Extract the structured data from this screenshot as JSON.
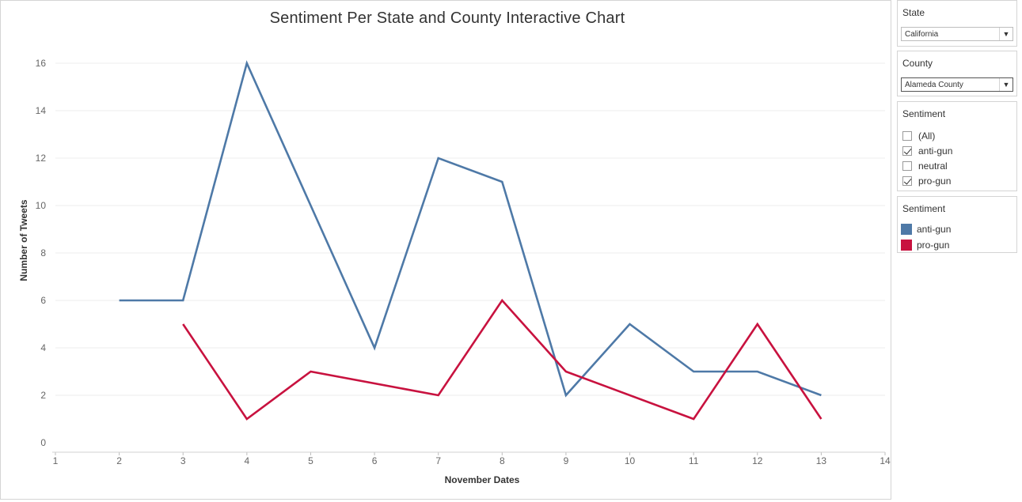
{
  "filters": {
    "state": {
      "label": "State",
      "value": "California"
    },
    "county": {
      "label": "County",
      "value": "Alameda County"
    },
    "sentiment": {
      "label": "Sentiment",
      "options": [
        {
          "label": "(All)",
          "checked": false
        },
        {
          "label": "anti-gun",
          "checked": true
        },
        {
          "label": "neutral",
          "checked": false
        },
        {
          "label": "pro-gun",
          "checked": true
        }
      ]
    }
  },
  "legend": {
    "title": "Sentiment",
    "items": [
      {
        "label": "anti-gun",
        "color": "#4e79a7"
      },
      {
        "label": "pro-gun",
        "color": "#c8123f"
      }
    ]
  },
  "chart_data": {
    "type": "line",
    "title": "Sentiment Per State and County Interactive Chart",
    "xlabel": "November Dates",
    "ylabel": "Number of Tweets",
    "xlim": [
      1,
      14
    ],
    "ylim": [
      0,
      17
    ],
    "x_ticks": [
      1,
      2,
      3,
      4,
      5,
      6,
      7,
      8,
      9,
      10,
      11,
      12,
      13,
      14
    ],
    "y_ticks": [
      0,
      2,
      4,
      6,
      8,
      10,
      12,
      14,
      16
    ],
    "grid": "horizontal",
    "series": [
      {
        "name": "anti-gun",
        "color": "#4e79a7",
        "x": [
          2,
          3,
          4,
          5,
          6,
          7,
          8,
          9,
          10,
          11,
          12,
          13
        ],
        "y": [
          6,
          6,
          16,
          10,
          4,
          12,
          11,
          2,
          5,
          3,
          3,
          2
        ]
      },
      {
        "name": "pro-gun",
        "color": "#c8123f",
        "x": [
          3,
          4,
          5,
          7,
          8,
          9,
          11,
          12,
          13
        ],
        "y": [
          5,
          1,
          3,
          2,
          6,
          3,
          1,
          5,
          1
        ]
      }
    ]
  }
}
